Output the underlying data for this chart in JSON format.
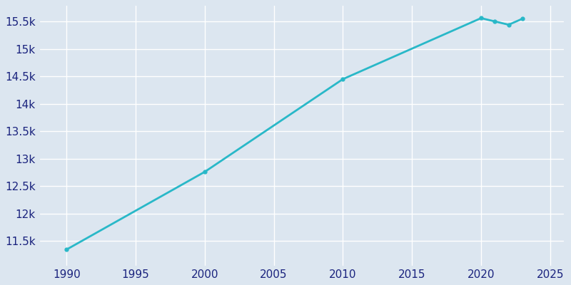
{
  "years": [
    1990,
    2000,
    2010,
    2020,
    2021,
    2022,
    2023
  ],
  "population": [
    11348,
    12762,
    14450,
    15560,
    15500,
    15440,
    15550
  ],
  "line_color": "#29b8c8",
  "marker_color": "#29b8c8",
  "bg_color": "#dce6f0",
  "plot_bg_color": "#dce6f0",
  "grid_color": "#ffffff",
  "text_color": "#1a237e",
  "xlim": [
    1988,
    2026
  ],
  "ylim": [
    11050,
    15800
  ],
  "xticks": [
    1990,
    1995,
    2000,
    2005,
    2010,
    2015,
    2020,
    2025
  ],
  "ytick_values": [
    11500,
    12000,
    12500,
    13000,
    13500,
    14000,
    14500,
    15000,
    15500
  ],
  "ytick_labels": [
    "11.5k",
    "12k",
    "12.5k",
    "13k",
    "13.5k",
    "14k",
    "14.5k",
    "15k",
    "15.5k"
  ],
  "linewidth": 2.0,
  "marker_size": 3.5
}
